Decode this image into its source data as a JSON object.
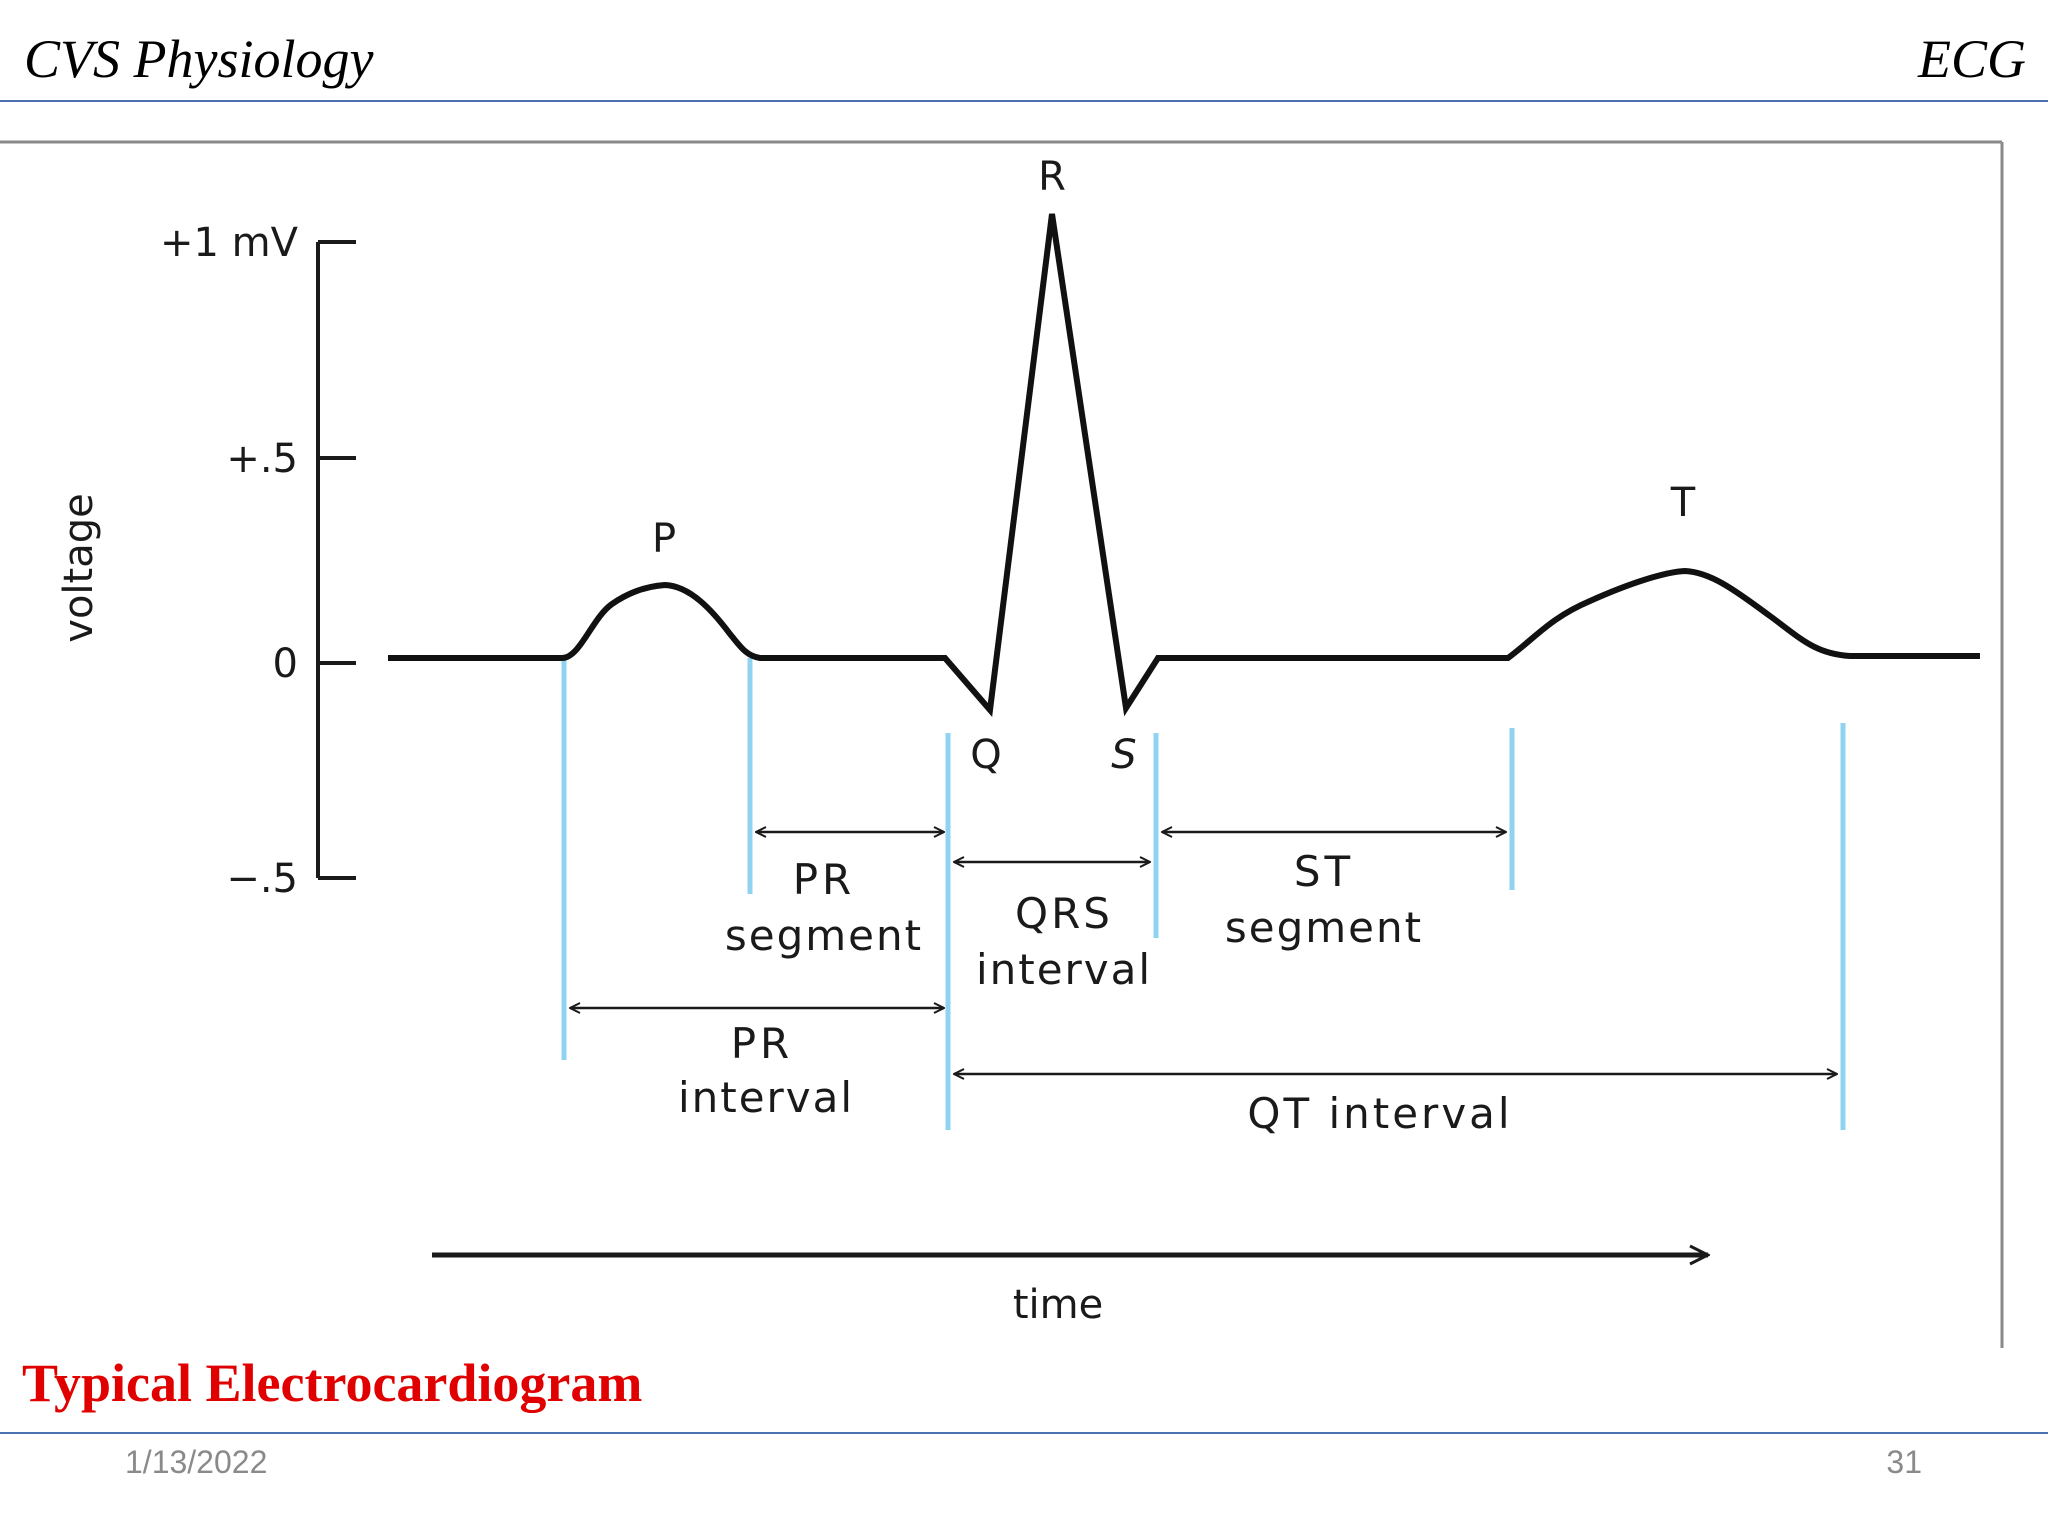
{
  "header": {
    "left": "CVS Physiology",
    "right": "ECG"
  },
  "diagram": {
    "y_axis": {
      "label": "voltage",
      "ticks": [
        "+1 mV",
        "+.5",
        "0",
        "−.5"
      ]
    },
    "waves": {
      "P": "P",
      "Q": "Q",
      "R": "R",
      "S": "S",
      "T": "T"
    },
    "intervals": {
      "pr_segment": [
        "PR",
        "segment"
      ],
      "pr_interval": [
        "PR",
        "interval"
      ],
      "qrs_interval": [
        "QRS",
        "interval"
      ],
      "st_segment": [
        "ST",
        "segment"
      ],
      "qt_interval": "QT interval"
    },
    "x_axis": {
      "label": "time"
    },
    "colors": {
      "trace": "#111111",
      "markers": "#8fd3f0",
      "frame": "#8a8a8a"
    }
  },
  "caption": "Typical Electrocardiogram",
  "footer": {
    "date": "1/13/2022",
    "page": "31"
  }
}
